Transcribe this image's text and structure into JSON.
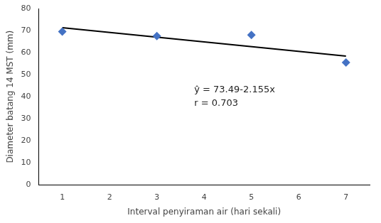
{
  "chart_data": {
    "type": "scatter",
    "xlabel": "Interval penyiraman air (hari sekali)",
    "ylabel": "Diameter batang 14 MST (mm)",
    "annotations": [
      "ŷ = 73.49-2.155x",
      "r = 0.703"
    ],
    "series": [
      {
        "type": "scatter",
        "marker": "diamond",
        "color": "#4472C4",
        "x": [
          1,
          3,
          5,
          7
        ],
        "values": [
          69.5,
          67.5,
          68.0,
          55.5
        ]
      },
      {
        "type": "line",
        "line_style": "solid",
        "color": "#000000",
        "x": [
          1,
          7
        ],
        "values": [
          71.335,
          58.405
        ]
      }
    ],
    "xlim": [
      0.5,
      7.5
    ],
    "xticks": [
      1,
      2,
      3,
      4,
      5,
      6,
      7
    ],
    "ylim": [
      0,
      80
    ],
    "yticks": [
      0,
      10,
      20,
      30,
      40,
      50,
      60,
      70,
      80
    ],
    "grid": false
  }
}
